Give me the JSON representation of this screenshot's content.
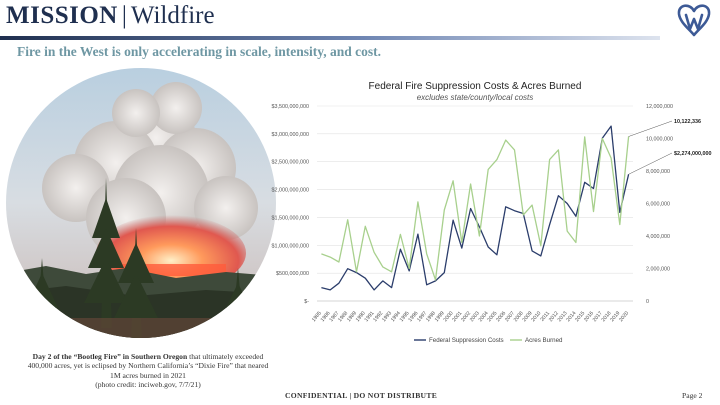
{
  "header": {
    "title_bold": "MISSION",
    "separator": "|",
    "title_rest": "Wildfire"
  },
  "subtitle": "Fire in the West is only accelerating in scale, intensity, and cost.",
  "caption": {
    "bold_part": "Day 2 of the “Bootleg Fire” in Southern Oregon",
    "rest": " that ultimately exceeded 400,000 acres, yet is eclipsed by Northern California’s “Dixie Fire” that neared 1M acres burned in 2021",
    "credit": "(photo credit: inciweb.gov, 7/7/21)"
  },
  "footer": "CONFIDENTIAL | DO NOT DISTRIBUTE",
  "page_number": "Page 2",
  "colors": {
    "navy": "#1f2f4f",
    "costs_line": "#2b3d6b",
    "acres_line": "#a8d08d",
    "subtitle": "#6e97a3",
    "logo": "#3d5a96"
  },
  "chart_data": {
    "type": "line",
    "title": "Federal Fire Suppression Costs & Acres Burned",
    "subtitle": "excludes state/county/local costs",
    "categories": [
      "1985",
      "1986",
      "1987",
      "1988",
      "1989",
      "1990",
      "1991",
      "1992",
      "1993",
      "1994",
      "1995",
      "1996",
      "1997",
      "1998",
      "1999",
      "2000",
      "2001",
      "2002",
      "2003",
      "2004",
      "2005",
      "2006",
      "2007",
      "2008",
      "2009",
      "2010",
      "2011",
      "2012",
      "2013",
      "2014",
      "2015",
      "2016",
      "2017",
      "2018",
      "2019",
      "2020"
    ],
    "series": [
      {
        "name": "Federal Suppression Costs",
        "axis": "left",
        "values": [
          240000000,
          200000000,
          320000000,
          580000000,
          510000000,
          410000000,
          200000000,
          360000000,
          240000000,
          930000000,
          540000000,
          1200000000,
          290000000,
          360000000,
          510000000,
          1450000000,
          950000000,
          1660000000,
          1330000000,
          970000000,
          830000000,
          1690000000,
          1620000000,
          1570000000,
          900000000,
          810000000,
          1370000000,
          1890000000,
          1750000000,
          1520000000,
          2130000000,
          2020000000,
          2920000000,
          3140000000,
          1590000000,
          2274000000
        ]
      },
      {
        "name": "Acres Burned",
        "axis": "right",
        "values": [
          2900000,
          2700000,
          2400000,
          5000000,
          1800000,
          4600000,
          3000000,
          2100000,
          1800000,
          4100000,
          2000000,
          6100000,
          2900000,
          1300000,
          5600000,
          7400000,
          3600000,
          7200000,
          4000000,
          8100000,
          8700000,
          9900000,
          9300000,
          5300000,
          5900000,
          3400000,
          8700000,
          9300000,
          4300000,
          3600000,
          10100000,
          5500000,
          10000000,
          8800000,
          4700000,
          10122336
        ]
      }
    ],
    "left_axis": {
      "min": 0,
      "max": 3500000000,
      "ticks": [
        "$-",
        "$500,000,000",
        "$1,000,000,000",
        "$1,500,000,000",
        "$2,000,000,000",
        "$2,500,000,000",
        "$3,000,000,000",
        "$3,500,000,000"
      ]
    },
    "right_axis": {
      "min": 0,
      "max": 12000000,
      "ticks": [
        "0",
        "2,000,000",
        "4,000,000",
        "6,000,000",
        "8,000,000",
        "10,000,000",
        "12,000,000"
      ]
    },
    "end_labels": {
      "acres": "10,122,336",
      "costs": "$2,274,000,000"
    },
    "gridlines": true,
    "legend_position": "bottom"
  }
}
